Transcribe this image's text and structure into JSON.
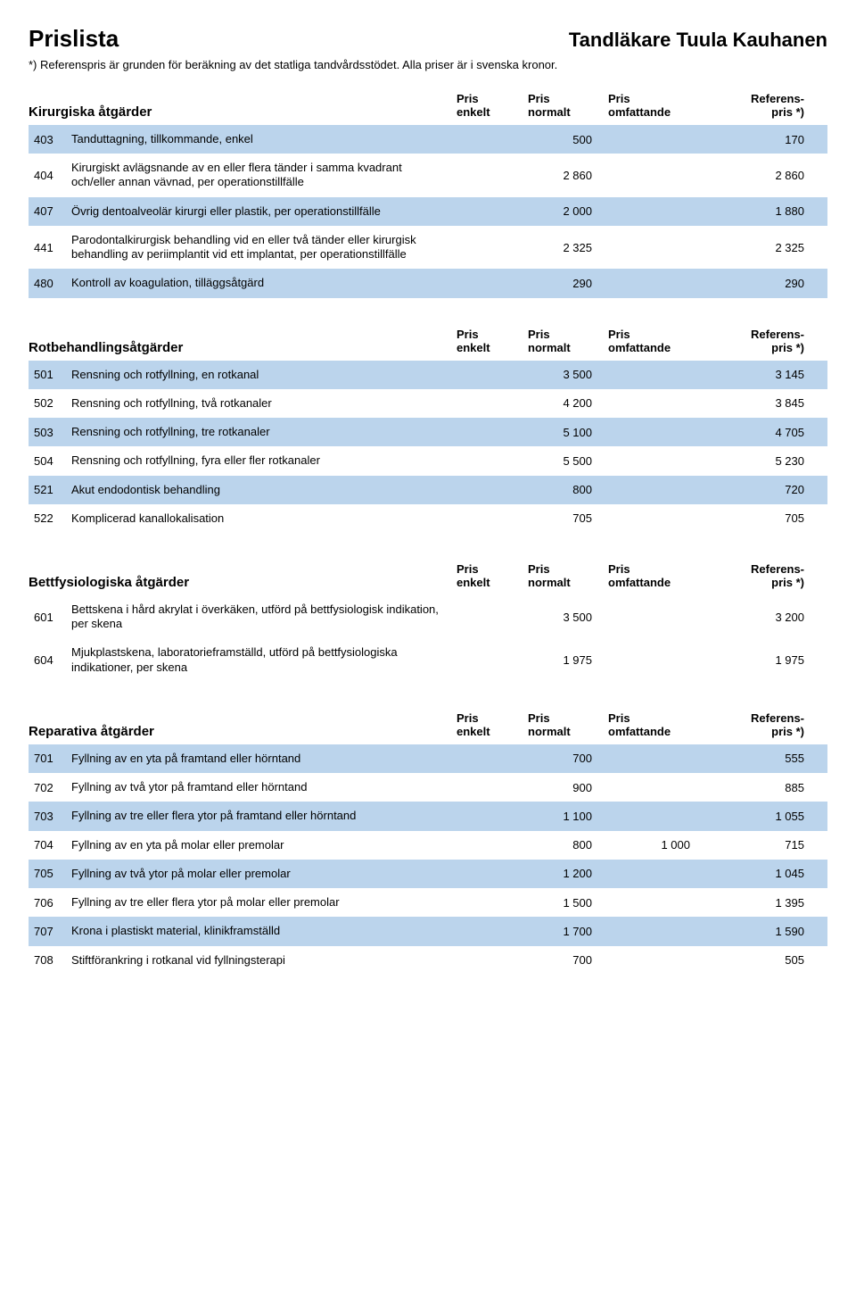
{
  "page_title": "Prislista",
  "dentist_name": "Tandläkare Tuula Kauhanen",
  "footnote": "*) Referenspris är grunden för beräkning av det statliga tandvårdsstödet. Alla priser är i svenska kronor.",
  "col_labels": {
    "enkelt_l1": "Pris",
    "enkelt_l2": "enkelt",
    "normalt_l1": "Pris",
    "normalt_l2": "normalt",
    "omf_l1": "Pris",
    "omf_l2": "omfattande",
    "ref_l1": "Referens-",
    "ref_l2": "pris *)"
  },
  "sections": [
    {
      "title": "Kirurgiska åtgärder",
      "rows": [
        {
          "shade": true,
          "code": "403",
          "desc": "Tanduttagning, tillkommande, enkel",
          "enkelt": "",
          "normalt": "500",
          "omf": "",
          "ref": "170"
        },
        {
          "shade": false,
          "code": "404",
          "desc": "Kirurgiskt avlägsnande av en eller flera tänder i samma kvadrant och/eller annan vävnad, per operationstillfälle",
          "enkelt": "",
          "normalt": "2 860",
          "omf": "",
          "ref": "2 860"
        },
        {
          "shade": true,
          "code": "407",
          "desc": "Övrig dentoalveolär kirurgi eller plastik, per operationstillfälle",
          "enkelt": "",
          "normalt": "2 000",
          "omf": "",
          "ref": "1 880"
        },
        {
          "shade": false,
          "code": "441",
          "desc": "Parodontalkirurgisk behandling vid en eller två tänder eller kirurgisk behandling av periimplantit vid ett implantat, per operationstillfälle",
          "enkelt": "",
          "normalt": "2 325",
          "omf": "",
          "ref": "2 325"
        },
        {
          "shade": true,
          "code": "480",
          "desc": "Kontroll av koagulation, tilläggsåtgärd",
          "enkelt": "",
          "normalt": "290",
          "omf": "",
          "ref": "290"
        }
      ]
    },
    {
      "title": "Rotbehandlingsåtgärder",
      "rows": [
        {
          "shade": true,
          "code": "501",
          "desc": "Rensning och rotfyllning, en rotkanal",
          "enkelt": "",
          "normalt": "3 500",
          "omf": "",
          "ref": "3 145"
        },
        {
          "shade": false,
          "code": "502",
          "desc": "Rensning och rotfyllning, två rotkanaler",
          "enkelt": "",
          "normalt": "4 200",
          "omf": "",
          "ref": "3 845"
        },
        {
          "shade": true,
          "code": "503",
          "desc": "Rensning och rotfyllning, tre rotkanaler",
          "enkelt": "",
          "normalt": "5 100",
          "omf": "",
          "ref": "4 705"
        },
        {
          "shade": false,
          "code": "504",
          "desc": "Rensning och rotfyllning, fyra eller fler rotkanaler",
          "enkelt": "",
          "normalt": "5 500",
          "omf": "",
          "ref": "5 230"
        },
        {
          "shade": true,
          "code": "521",
          "desc": "Akut endodontisk behandling",
          "enkelt": "",
          "normalt": "800",
          "omf": "",
          "ref": "720"
        },
        {
          "shade": false,
          "code": "522",
          "desc": "Komplicerad kanallokalisation",
          "enkelt": "",
          "normalt": "705",
          "omf": "",
          "ref": "705"
        }
      ]
    },
    {
      "title": "Bettfysiologiska åtgärder",
      "rows": [
        {
          "shade": false,
          "code": "601",
          "desc": "Bettskena i hård akrylat i överkäken, utförd på bettfysiologisk indikation, per skena",
          "enkelt": "",
          "normalt": "3 500",
          "omf": "",
          "ref": "3 200"
        },
        {
          "shade": false,
          "code": "604",
          "desc": "Mjukplastskena, laboratorieframställd, utförd på bettfysiologiska indikationer, per skena",
          "enkelt": "",
          "normalt": "1 975",
          "omf": "",
          "ref": "1 975"
        }
      ]
    },
    {
      "title": "Reparativa åtgärder",
      "rows": [
        {
          "shade": true,
          "code": "701",
          "desc": "Fyllning av en yta på framtand eller hörntand",
          "enkelt": "",
          "normalt": "700",
          "omf": "",
          "ref": "555"
        },
        {
          "shade": false,
          "code": "702",
          "desc": "Fyllning av två ytor på framtand eller hörntand",
          "enkelt": "",
          "normalt": "900",
          "omf": "",
          "ref": "885"
        },
        {
          "shade": true,
          "code": "703",
          "desc": "Fyllning av tre eller flera ytor på framtand eller hörntand",
          "enkelt": "",
          "normalt": "1 100",
          "omf": "",
          "ref": "1 055"
        },
        {
          "shade": false,
          "code": "704",
          "desc": "Fyllning av en yta på molar eller premolar",
          "enkelt": "",
          "normalt": "800",
          "omf": "1 000",
          "ref": "715"
        },
        {
          "shade": true,
          "code": "705",
          "desc": "Fyllning av två ytor på molar eller premolar",
          "enkelt": "",
          "normalt": "1 200",
          "omf": "",
          "ref": "1 045"
        },
        {
          "shade": false,
          "code": "706",
          "desc": "Fyllning av tre eller flera ytor på molar eller premolar",
          "enkelt": "",
          "normalt": "1 500",
          "omf": "",
          "ref": "1 395"
        },
        {
          "shade": true,
          "code": "707",
          "desc": "Krona i plastiskt material, klinikframställd",
          "enkelt": "",
          "normalt": "1 700",
          "omf": "",
          "ref": "1 590"
        },
        {
          "shade": false,
          "code": "708",
          "desc": "Stiftförankring i rotkanal vid fyllningsterapi",
          "enkelt": "",
          "normalt": "700",
          "omf": "",
          "ref": "505"
        }
      ]
    }
  ]
}
